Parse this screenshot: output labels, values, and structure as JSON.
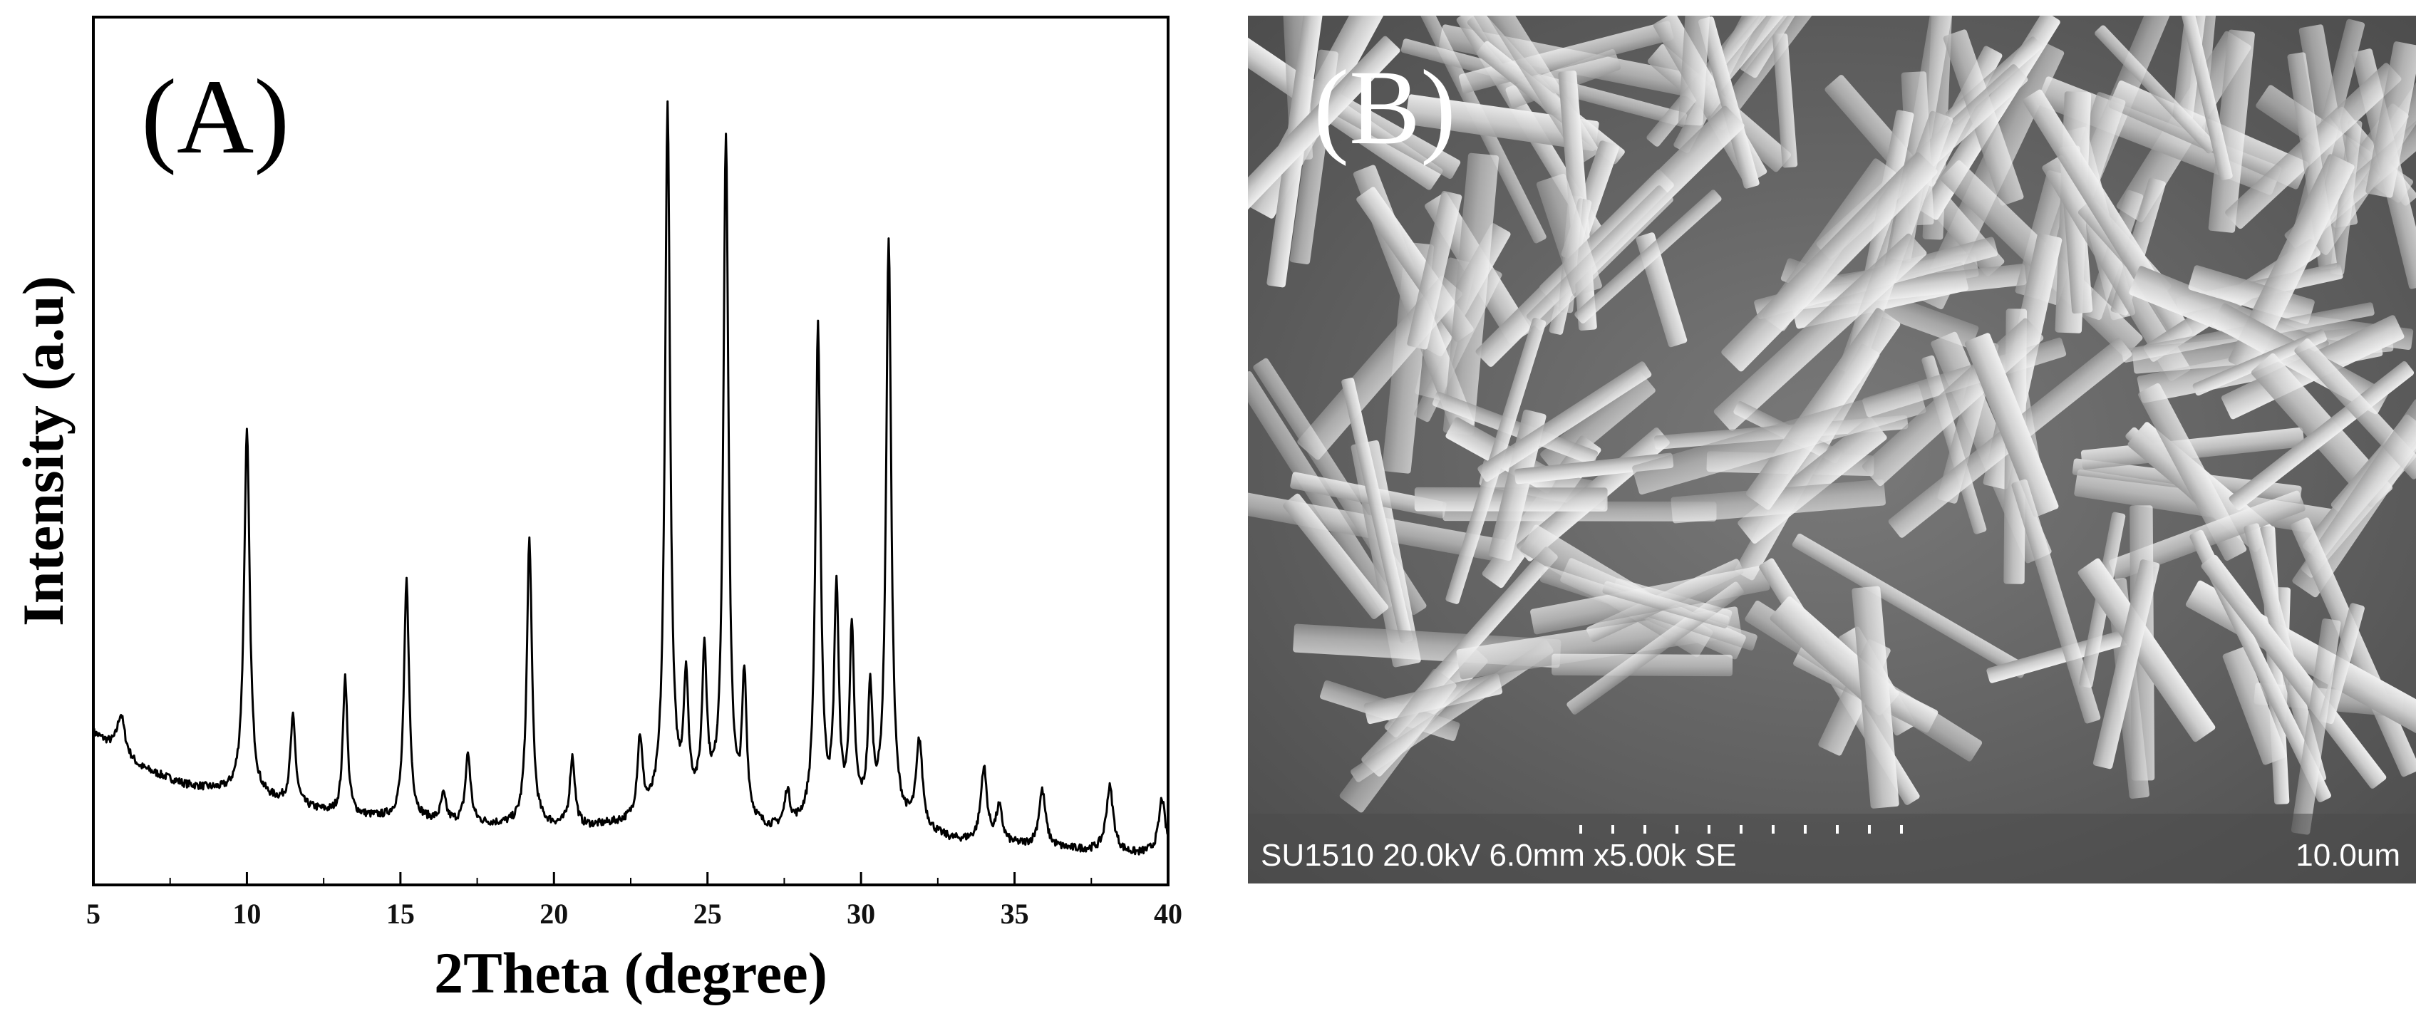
{
  "panels": {
    "a": {
      "label": "(A)"
    },
    "b": {
      "label": "(B)",
      "sem_info": "SU1510 20.0kV 6.0mm x5.00k SE",
      "scale_bar_label": "10.0um",
      "description_colors": {
        "background": "#6c6c6c",
        "crystal": "#d9d9d9"
      }
    }
  },
  "chart_data": {
    "type": "line",
    "title": "",
    "xlabel": "2Theta (degree)",
    "ylabel": "Intensity (a.u)",
    "xlim": [
      5,
      40
    ],
    "ylim": [
      0,
      100
    ],
    "x_ticks": [
      5,
      10,
      15,
      20,
      25,
      30,
      35,
      40
    ],
    "y_ticks_shown": false,
    "grid": false,
    "legend": "none",
    "line_color": "#000000",
    "baseline": [
      [
        5.0,
        17.5
      ],
      [
        6.5,
        13.5
      ],
      [
        8.0,
        11.5
      ],
      [
        9.5,
        10.5
      ],
      [
        11.0,
        9.5
      ],
      [
        13.0,
        8.0
      ],
      [
        15.0,
        7.5
      ],
      [
        17.0,
        7.0
      ],
      [
        19.0,
        6.7
      ],
      [
        21.0,
        6.5
      ],
      [
        22.5,
        7.0
      ],
      [
        24.0,
        8.5
      ],
      [
        25.0,
        9.0
      ],
      [
        26.0,
        7.0
      ],
      [
        27.0,
        6.0
      ],
      [
        28.5,
        6.5
      ],
      [
        30.0,
        7.5
      ],
      [
        31.5,
        6.5
      ],
      [
        33.0,
        5.0
      ],
      [
        35.0,
        4.5
      ],
      [
        37.0,
        4.0
      ],
      [
        39.0,
        3.5
      ],
      [
        40.0,
        4.0
      ]
    ],
    "peaks": [
      {
        "x": 5.9,
        "height": 4.5,
        "width": 0.15
      },
      {
        "x": 10.0,
        "height": 42.0,
        "width": 0.11
      },
      {
        "x": 11.5,
        "height": 10.0,
        "width": 0.1
      },
      {
        "x": 13.2,
        "height": 16.0,
        "width": 0.09
      },
      {
        "x": 15.2,
        "height": 27.5,
        "width": 0.1
      },
      {
        "x": 16.4,
        "height": 3.0,
        "width": 0.1
      },
      {
        "x": 17.2,
        "height": 8.0,
        "width": 0.1
      },
      {
        "x": 19.2,
        "height": 33.0,
        "width": 0.1
      },
      {
        "x": 20.6,
        "height": 8.0,
        "width": 0.1
      },
      {
        "x": 22.8,
        "height": 9.0,
        "width": 0.1
      },
      {
        "x": 23.7,
        "height": 81.0,
        "width": 0.1
      },
      {
        "x": 24.3,
        "height": 14.0,
        "width": 0.09
      },
      {
        "x": 24.9,
        "height": 17.0,
        "width": 0.09
      },
      {
        "x": 25.6,
        "height": 78.0,
        "width": 0.1
      },
      {
        "x": 26.2,
        "height": 16.0,
        "width": 0.09
      },
      {
        "x": 27.6,
        "height": 4.0,
        "width": 0.1
      },
      {
        "x": 28.6,
        "height": 57.0,
        "width": 0.1
      },
      {
        "x": 29.2,
        "height": 26.0,
        "width": 0.09
      },
      {
        "x": 29.7,
        "height": 21.0,
        "width": 0.09
      },
      {
        "x": 30.3,
        "height": 14.0,
        "width": 0.09
      },
      {
        "x": 30.9,
        "height": 67.0,
        "width": 0.1
      },
      {
        "x": 31.9,
        "height": 10.0,
        "width": 0.12
      },
      {
        "x": 34.0,
        "height": 8.5,
        "width": 0.12
      },
      {
        "x": 34.5,
        "height": 4.0,
        "width": 0.12
      },
      {
        "x": 35.9,
        "height": 6.5,
        "width": 0.13
      },
      {
        "x": 38.1,
        "height": 7.5,
        "width": 0.14
      },
      {
        "x": 39.8,
        "height": 6.0,
        "width": 0.12
      }
    ]
  }
}
